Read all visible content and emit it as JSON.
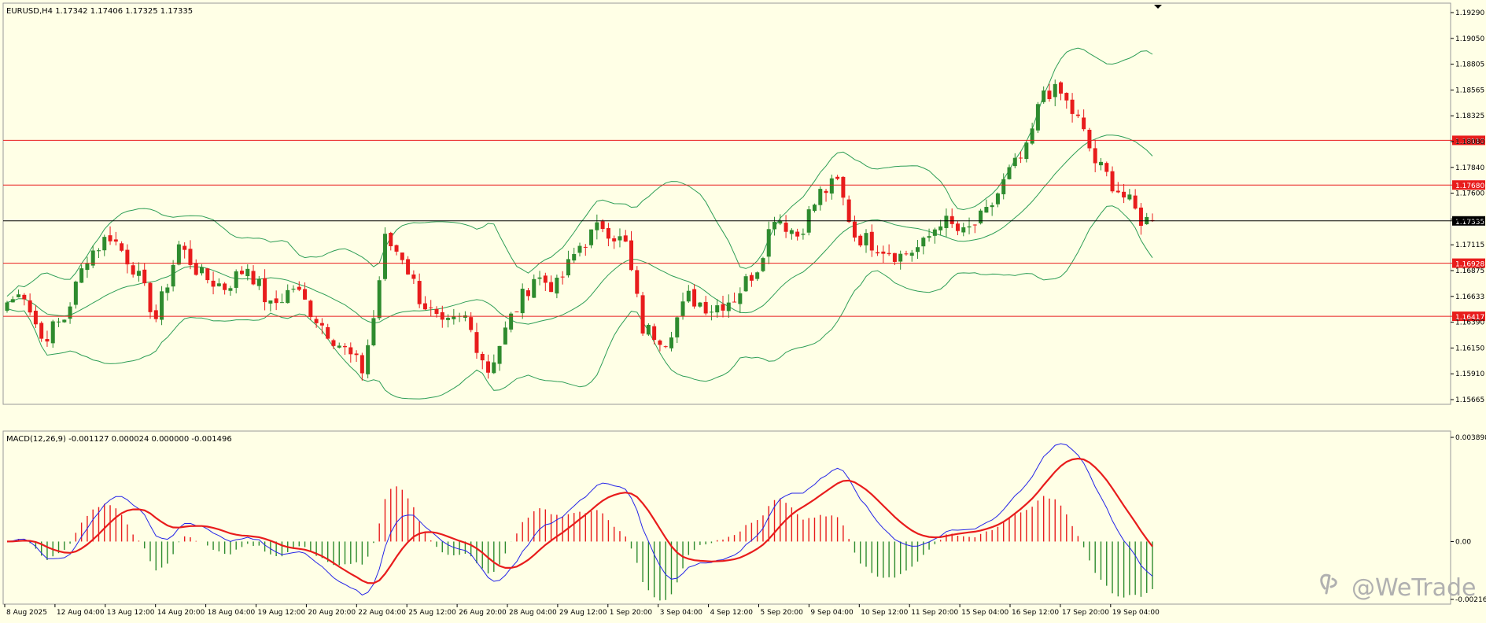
{
  "symbol_title": "EURUSD,H4  1.17342 1.17406 1.17325 1.17335",
  "macd_title": "MACD(12,26,9) -0.001127 0.000024 0.000000 -0.001496",
  "watermark": "@WeTrade",
  "watermark_icon": "wetrade-logo-icon",
  "colors": {
    "background": "#ffffe6",
    "bull": "#2e8b2e",
    "bear": "#e81c1c",
    "bands": "#2e9e56",
    "macd_line": "#2424e8",
    "signal_line": "#e81c1c",
    "hline": "#e81c1c",
    "price_line": "#000000"
  },
  "chart_data": [
    {
      "type": "candlestick",
      "name": "EURUSD,H4",
      "ylim": [
        1.156,
        1.194
      ],
      "y_ticks": [
        "1.19290",
        "1.19050",
        "1.18805",
        "1.18565",
        "1.18325",
        "1.18080",
        "1.17840",
        "1.17600",
        "1.17355",
        "1.17115",
        "1.16875",
        "1.16633",
        "1.16390",
        "1.16150",
        "1.15910",
        "1.15665"
      ],
      "x_tick_labels": [
        "8 Aug 2025",
        "12 Aug 04:00",
        "13 Aug 12:00",
        "14 Aug 20:00",
        "18 Aug 04:00",
        "19 Aug 12:00",
        "20 Aug 20:00",
        "22 Aug 04:00",
        "25 Aug 12:00",
        "26 Aug 20:00",
        "28 Aug 04:00",
        "29 Aug 12:00",
        "1 Sep 20:00",
        "3 Sep 04:00",
        "4 Sep 12:00",
        "5 Sep 20:00",
        "9 Sep 04:00",
        "10 Sep 12:00",
        "11 Sep 20:00",
        "15 Sep 04:00",
        "16 Sep 12:00",
        "17 Sep 20:00",
        "19 Sep 04:00"
      ],
      "horizontal_levels": [
        {
          "value": 1.1811,
          "label": "1.18110"
        },
        {
          "value": 1.1768,
          "label": "1.17680"
        },
        {
          "value": 1.16928,
          "label": "1.16928"
        },
        {
          "value": 1.16417,
          "label": "1.16417"
        }
      ],
      "current_price": {
        "value": 1.17335,
        "label": "1.17335"
      },
      "close_waypoints": [
        [
          0,
          1.1655
        ],
        [
          3,
          1.1665
        ],
        [
          6,
          1.162
        ],
        [
          10,
          1.164
        ],
        [
          14,
          1.17
        ],
        [
          18,
          1.172
        ],
        [
          22,
          1.169
        ],
        [
          26,
          1.164
        ],
        [
          30,
          1.171
        ],
        [
          34,
          1.168
        ],
        [
          38,
          1.167
        ],
        [
          42,
          1.169
        ],
        [
          46,
          1.165
        ],
        [
          50,
          1.167
        ],
        [
          54,
          1.164
        ],
        [
          58,
          1.1615
        ],
        [
          62,
          1.159
        ],
        [
          64,
          1.164
        ],
        [
          66,
          1.1715
        ],
        [
          69,
          1.17
        ],
        [
          72,
          1.166
        ],
        [
          76,
          1.163
        ],
        [
          80,
          1.164
        ],
        [
          84,
          1.159
        ],
        [
          88,
          1.164
        ],
        [
          92,
          1.168
        ],
        [
          96,
          1.167
        ],
        [
          100,
          1.171
        ],
        [
          104,
          1.173
        ],
        [
          108,
          1.171
        ],
        [
          111,
          1.163
        ],
        [
          115,
          1.162
        ],
        [
          119,
          1.166
        ],
        [
          123,
          1.165
        ],
        [
          127,
          1.166
        ],
        [
          131,
          1.169
        ],
        [
          134,
          1.174
        ],
        [
          138,
          1.172
        ],
        [
          142,
          1.176
        ],
        [
          145,
          1.177
        ],
        [
          148,
          1.172
        ],
        [
          152,
          1.171
        ],
        [
          156,
          1.17
        ],
        [
          160,
          1.171
        ],
        [
          163,
          1.1735
        ],
        [
          167,
          1.172
        ],
        [
          171,
          1.174
        ],
        [
          175,
          1.178
        ],
        [
          178,
          1.18
        ],
        [
          181,
          1.186
        ],
        [
          184,
          1.1855
        ],
        [
          187,
          1.183
        ],
        [
          190,
          1.179
        ],
        [
          193,
          1.177
        ],
        [
          196,
          1.175
        ],
        [
          198,
          1.1735
        ],
        [
          200,
          1.1733
        ]
      ],
      "bollinger": {
        "period": 20,
        "deviations": 2
      }
    },
    {
      "type": "macd",
      "name": "MACD(12,26,9)",
      "ylim": [
        -0.00216,
        0.0039
      ],
      "y_ticks": [
        "0.003898",
        "0.00",
        "-0.002165"
      ],
      "parameters": {
        "fast": 12,
        "slow": 26,
        "signal": 9
      }
    }
  ]
}
